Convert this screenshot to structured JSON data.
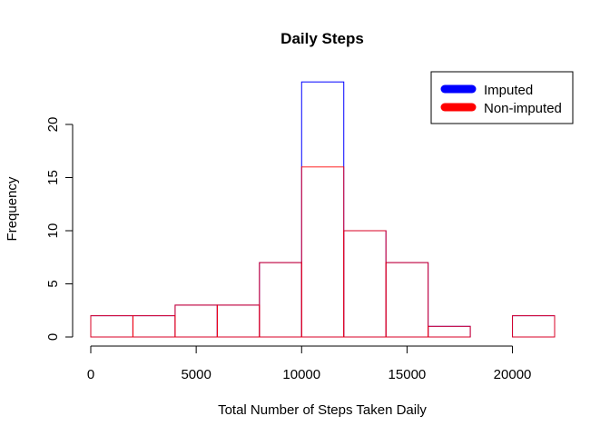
{
  "chart_data": {
    "type": "bar",
    "title": "Daily Steps",
    "xlabel": "Total Number of Steps Taken Daily",
    "ylabel": "Frequency",
    "xlim": [
      0,
      22000
    ],
    "ylim": [
      0,
      24
    ],
    "x_ticks": [
      0,
      5000,
      10000,
      15000,
      20000
    ],
    "y_ticks": [
      0,
      5,
      10,
      15,
      20
    ],
    "bin_edges": [
      0,
      2000,
      4000,
      6000,
      8000,
      10000,
      12000,
      14000,
      16000,
      18000,
      20000,
      22000
    ],
    "series": [
      {
        "name": "Imputed",
        "color": "#0000ff",
        "values": [
          2,
          2,
          3,
          3,
          7,
          24,
          10,
          7,
          1,
          0,
          2
        ]
      },
      {
        "name": "Non-imputed",
        "color": "#ff0000",
        "values": [
          2,
          2,
          3,
          3,
          7,
          16,
          10,
          7,
          1,
          0,
          2
        ]
      }
    ],
    "legend_position": "top-right",
    "grid": false
  }
}
